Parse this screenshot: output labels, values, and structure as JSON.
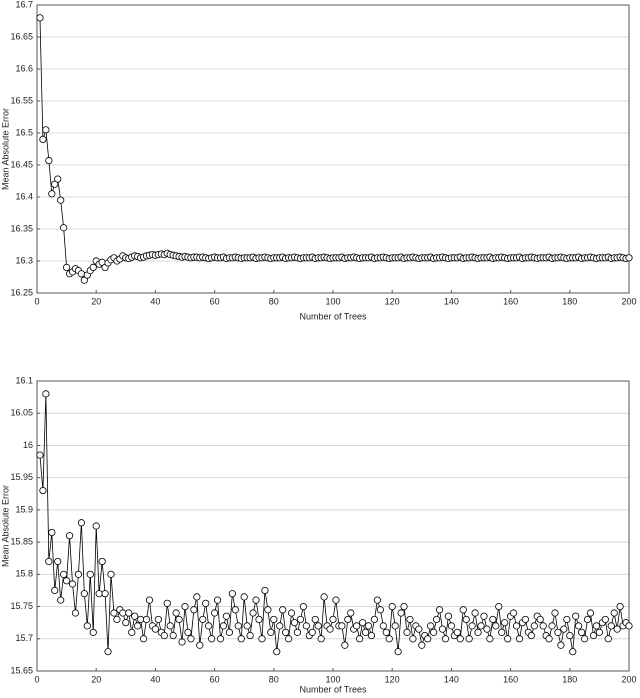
{
  "chart_data": [
    {
      "type": "line",
      "ylabel": "Mean Absolute Error",
      "xlabel": "Number of Trees",
      "color": "#000000",
      "grid": true,
      "xlim": [
        0,
        200
      ],
      "ylim": [
        16.25,
        16.7
      ],
      "xticks": [
        0,
        20,
        40,
        60,
        80,
        100,
        120,
        140,
        160,
        180,
        200
      ],
      "yticks": [
        16.25,
        16.3,
        16.35,
        16.4,
        16.45,
        16.5,
        16.55,
        16.6,
        16.65,
        16.7
      ],
      "x": [
        1,
        2,
        3,
        4,
        5,
        6,
        7,
        8,
        9,
        10,
        11,
        12,
        13,
        14,
        15,
        16,
        17,
        18,
        19,
        20,
        21,
        22,
        23,
        24,
        25,
        26,
        27,
        28,
        29,
        30,
        31,
        32,
        33,
        34,
        35,
        36,
        37,
        38,
        39,
        40,
        41,
        42,
        43,
        44,
        45,
        46,
        47,
        48,
        49,
        50,
        51,
        52,
        53,
        54,
        55,
        56,
        57,
        58,
        59,
        60,
        61,
        62,
        63,
        64,
        65,
        66,
        67,
        68,
        69,
        70,
        71,
        72,
        73,
        74,
        75,
        76,
        77,
        78,
        79,
        80,
        81,
        82,
        83,
        84,
        85,
        86,
        87,
        88,
        89,
        90,
        91,
        92,
        93,
        94,
        95,
        96,
        97,
        98,
        99,
        100,
        101,
        102,
        103,
        104,
        105,
        106,
        107,
        108,
        109,
        110,
        111,
        112,
        113,
        114,
        115,
        116,
        117,
        118,
        119,
        120,
        121,
        122,
        123,
        124,
        125,
        126,
        127,
        128,
        129,
        130,
        131,
        132,
        133,
        134,
        135,
        136,
        137,
        138,
        139,
        140,
        141,
        142,
        143,
        144,
        145,
        146,
        147,
        148,
        149,
        150,
        151,
        152,
        153,
        154,
        155,
        156,
        157,
        158,
        159,
        160,
        161,
        162,
        163,
        164,
        165,
        166,
        167,
        168,
        169,
        170,
        171,
        172,
        173,
        174,
        175,
        176,
        177,
        178,
        179,
        180,
        181,
        182,
        183,
        184,
        185,
        186,
        187,
        188,
        189,
        190,
        191,
        192,
        193,
        194,
        195,
        196,
        197,
        198,
        199,
        200
      ],
      "values": [
        16.68,
        16.49,
        16.505,
        16.457,
        16.405,
        16.42,
        16.428,
        16.395,
        16.352,
        16.29,
        16.28,
        16.283,
        16.288,
        16.285,
        16.28,
        16.27,
        16.278,
        16.285,
        16.29,
        16.3,
        16.295,
        16.298,
        16.29,
        16.297,
        16.302,
        16.305,
        16.3,
        16.303,
        16.308,
        16.305,
        16.304,
        16.306,
        16.308,
        16.307,
        16.305,
        16.306,
        16.308,
        16.309,
        16.31,
        16.309,
        16.31,
        16.311,
        16.31,
        16.312,
        16.31,
        16.309,
        16.308,
        16.307,
        16.306,
        16.307,
        16.306,
        16.305,
        16.306,
        16.306,
        16.305,
        16.306,
        16.305,
        16.304,
        16.305,
        16.306,
        16.305,
        16.305,
        16.306,
        16.304,
        16.305,
        16.305,
        16.306,
        16.305,
        16.304,
        16.305,
        16.305,
        16.305,
        16.306,
        16.304,
        16.305,
        16.305,
        16.306,
        16.305,
        16.304,
        16.305,
        16.305,
        16.305,
        16.306,
        16.304,
        16.305,
        16.305,
        16.306,
        16.305,
        16.304,
        16.305,
        16.305,
        16.305,
        16.306,
        16.304,
        16.305,
        16.305,
        16.306,
        16.305,
        16.304,
        16.305,
        16.305,
        16.305,
        16.306,
        16.304,
        16.305,
        16.305,
        16.306,
        16.305,
        16.304,
        16.305,
        16.305,
        16.305,
        16.306,
        16.304,
        16.305,
        16.305,
        16.306,
        16.305,
        16.304,
        16.305,
        16.305,
        16.305,
        16.306,
        16.304,
        16.305,
        16.305,
        16.306,
        16.305,
        16.304,
        16.305,
        16.305,
        16.305,
        16.306,
        16.304,
        16.305,
        16.305,
        16.306,
        16.305,
        16.304,
        16.305,
        16.305,
        16.305,
        16.306,
        16.304,
        16.305,
        16.305,
        16.306,
        16.305,
        16.304,
        16.305,
        16.305,
        16.305,
        16.306,
        16.304,
        16.305,
        16.305,
        16.306,
        16.305,
        16.304,
        16.305,
        16.305,
        16.305,
        16.306,
        16.304,
        16.305,
        16.305,
        16.306,
        16.305,
        16.304,
        16.305,
        16.305,
        16.305,
        16.306,
        16.304,
        16.305,
        16.305,
        16.306,
        16.305,
        16.304,
        16.305,
        16.305,
        16.305,
        16.306,
        16.304,
        16.305,
        16.305,
        16.306,
        16.305,
        16.304,
        16.305,
        16.305,
        16.305,
        16.306,
        16.304,
        16.305,
        16.305,
        16.306,
        16.305,
        16.304,
        16.305
      ]
    },
    {
      "type": "line",
      "ylabel": "Mean Absolute Error",
      "xlabel": "Number of Trees",
      "color": "#000000",
      "grid": true,
      "xlim": [
        0,
        200
      ],
      "ylim": [
        15.65,
        16.1
      ],
      "xticks": [
        0,
        20,
        40,
        60,
        80,
        100,
        120,
        140,
        160,
        180,
        200
      ],
      "yticks": [
        15.65,
        15.7,
        15.75,
        15.8,
        15.85,
        15.9,
        15.95,
        16,
        16.05,
        16.1
      ],
      "x": [
        1,
        2,
        3,
        4,
        5,
        6,
        7,
        8,
        9,
        10,
        11,
        12,
        13,
        14,
        15,
        16,
        17,
        18,
        19,
        20,
        21,
        22,
        23,
        24,
        25,
        26,
        27,
        28,
        29,
        30,
        31,
        32,
        33,
        34,
        35,
        36,
        37,
        38,
        39,
        40,
        41,
        42,
        43,
        44,
        45,
        46,
        47,
        48,
        49,
        50,
        51,
        52,
        53,
        54,
        55,
        56,
        57,
        58,
        59,
        60,
        61,
        62,
        63,
        64,
        65,
        66,
        67,
        68,
        69,
        70,
        71,
        72,
        73,
        74,
        75,
        76,
        77,
        78,
        79,
        80,
        81,
        82,
        83,
        84,
        85,
        86,
        87,
        88,
        89,
        90,
        91,
        92,
        93,
        94,
        95,
        96,
        97,
        98,
        99,
        100,
        101,
        102,
        103,
        104,
        105,
        106,
        107,
        108,
        109,
        110,
        111,
        112,
        113,
        114,
        115,
        116,
        117,
        118,
        119,
        120,
        121,
        122,
        123,
        124,
        125,
        126,
        127,
        128,
        129,
        130,
        131,
        132,
        133,
        134,
        135,
        136,
        137,
        138,
        139,
        140,
        141,
        142,
        143,
        144,
        145,
        146,
        147,
        148,
        149,
        150,
        151,
        152,
        153,
        154,
        155,
        156,
        157,
        158,
        159,
        160,
        161,
        162,
        163,
        164,
        165,
        166,
        167,
        168,
        169,
        170,
        171,
        172,
        173,
        174,
        175,
        176,
        177,
        178,
        179,
        180,
        181,
        182,
        183,
        184,
        185,
        186,
        187,
        188,
        189,
        190,
        191,
        192,
        193,
        194,
        195,
        196,
        197,
        198,
        199,
        200
      ],
      "values": [
        15.985,
        15.93,
        16.08,
        15.82,
        15.865,
        15.775,
        15.82,
        15.76,
        15.8,
        15.79,
        15.86,
        15.785,
        15.74,
        15.8,
        15.88,
        15.77,
        15.72,
        15.8,
        15.71,
        15.875,
        15.77,
        15.82,
        15.77,
        15.68,
        15.8,
        15.74,
        15.73,
        15.745,
        15.74,
        15.725,
        15.74,
        15.71,
        15.735,
        15.72,
        15.73,
        15.7,
        15.73,
        15.76,
        15.72,
        15.715,
        15.73,
        15.71,
        15.705,
        15.755,
        15.72,
        15.705,
        15.74,
        15.73,
        15.695,
        15.75,
        15.71,
        15.7,
        15.745,
        15.765,
        15.69,
        15.73,
        15.755,
        15.72,
        15.7,
        15.74,
        15.76,
        15.7,
        15.72,
        15.735,
        15.71,
        15.77,
        15.745,
        15.72,
        15.7,
        15.765,
        15.72,
        15.705,
        15.74,
        15.76,
        15.73,
        15.7,
        15.775,
        15.745,
        15.71,
        15.73,
        15.68,
        15.72,
        15.745,
        15.71,
        15.7,
        15.74,
        15.725,
        15.71,
        15.73,
        15.75,
        15.72,
        15.705,
        15.71,
        15.73,
        15.72,
        15.7,
        15.765,
        15.72,
        15.715,
        15.73,
        15.76,
        15.72,
        15.72,
        15.69,
        15.73,
        15.74,
        15.715,
        15.72,
        15.7,
        15.725,
        15.71,
        15.72,
        15.705,
        15.73,
        15.76,
        15.745,
        15.72,
        15.71,
        15.7,
        15.75,
        15.72,
        15.68,
        15.74,
        15.75,
        15.71,
        15.73,
        15.7,
        15.72,
        15.715,
        15.69,
        15.705,
        15.7,
        15.72,
        15.71,
        15.73,
        15.745,
        15.715,
        15.7,
        15.735,
        15.72,
        15.705,
        15.71,
        15.7,
        15.745,
        15.73,
        15.7,
        15.72,
        15.74,
        15.71,
        15.72,
        15.735,
        15.715,
        15.7,
        15.73,
        15.72,
        15.75,
        15.71,
        15.725,
        15.7,
        15.735,
        15.74,
        15.72,
        15.7,
        15.725,
        15.73,
        15.71,
        15.705,
        15.72,
        15.735,
        15.73,
        15.72,
        15.705,
        15.7,
        15.72,
        15.74,
        15.71,
        15.69,
        15.715,
        15.73,
        15.705,
        15.68,
        15.735,
        15.72,
        15.71,
        15.7,
        15.73,
        15.74,
        15.705,
        15.72,
        15.71,
        15.725,
        15.73,
        15.7,
        15.72,
        15.74,
        15.715,
        15.75,
        15.72,
        15.725,
        15.72
      ]
    }
  ]
}
